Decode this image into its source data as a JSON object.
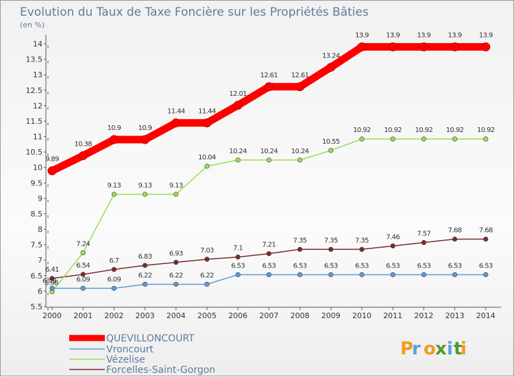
{
  "chart_data": {
    "type": "line",
    "title": "Evolution du Taux de Taxe Foncière sur les Propriétés Bâties",
    "subtitle": "(en %)",
    "xlabel": "",
    "ylabel": "",
    "ylim": [
      5.5,
      14
    ],
    "grid": false,
    "legend_position": "bottom-left",
    "x": [
      "2000",
      "2001",
      "2002",
      "2003",
      "2004",
      "2005",
      "2006",
      "2007",
      "2008",
      "2009",
      "2010",
      "2011",
      "2012",
      "2013",
      "2014"
    ],
    "y_ticks": [
      "5.5",
      "6",
      "6.5",
      "7",
      "7.5",
      "8",
      "8.5",
      "9",
      "9.5",
      "10",
      "10.5",
      "11",
      "11.5",
      "12",
      "12.5",
      "13",
      "13.5",
      "14"
    ],
    "series": [
      {
        "name": "QUEVILLONCOURT",
        "color": "#ff0000",
        "values": [
          9.89,
          10.38,
          10.9,
          10.9,
          11.44,
          11.44,
          12.01,
          12.61,
          12.61,
          13.24,
          13.9,
          13.9,
          13.9,
          13.9,
          13.9
        ],
        "labels": [
          "9.89",
          "10.38",
          "10.9",
          "10.9",
          "11.44",
          "11.44",
          "12.01",
          "12.61",
          "12.61",
          "13.24",
          "13.9",
          "13.9",
          "13.9",
          "13.9",
          "13.9"
        ]
      },
      {
        "name": "Vroncourt",
        "color": "#5b9bd5",
        "values": [
          6.09,
          6.09,
          6.09,
          6.22,
          6.22,
          6.22,
          6.53,
          6.53,
          6.53,
          6.53,
          6.53,
          6.53,
          6.53,
          6.53,
          6.53
        ],
        "labels": [
          "6.09",
          "6.09",
          "6.09",
          "6.22",
          "6.22",
          "6.22",
          "6.53",
          "6.53",
          "6.53",
          "6.53",
          "6.53",
          "6.53",
          "6.53",
          "6.53",
          "6.53"
        ]
      },
      {
        "name": "Vézelise",
        "color": "#99dd55",
        "values": [
          5.98,
          7.24,
          9.13,
          9.13,
          9.13,
          10.04,
          10.24,
          10.24,
          10.24,
          10.55,
          10.92,
          10.92,
          10.92,
          10.92,
          10.92
        ],
        "labels": [
          "5.98",
          "7.24",
          "9.13",
          "9.13",
          "9.13",
          "10.04",
          "10.24",
          "10.24",
          "10.24",
          "10.55",
          "10.92",
          "10.92",
          "10.92",
          "10.92",
          "10.92"
        ]
      },
      {
        "name": "Forcelles-Saint-Gorgon",
        "color": "#7a2b2b",
        "values": [
          6.41,
          6.54,
          6.7,
          6.83,
          6.93,
          7.03,
          7.1,
          7.21,
          7.35,
          7.35,
          7.35,
          7.46,
          7.57,
          7.68,
          7.68
        ],
        "labels": [
          "6.41",
          "6.54",
          "6.7",
          "6.83",
          "6.93",
          "7.03",
          "7.1",
          "7.21",
          "7.35",
          "7.35",
          "7.35",
          "7.46",
          "7.57",
          "7.68",
          "7.68"
        ]
      }
    ]
  },
  "logo": {
    "letters": [
      "P",
      "r",
      "o",
      "x",
      "i",
      "t",
      "i"
    ],
    "colors": [
      "#f29b1d",
      "#5aa0d8",
      "#f29b1d",
      "#4f9a2f",
      "#5aa0d8",
      "#4f9a2f",
      "#f29b1d"
    ]
  }
}
